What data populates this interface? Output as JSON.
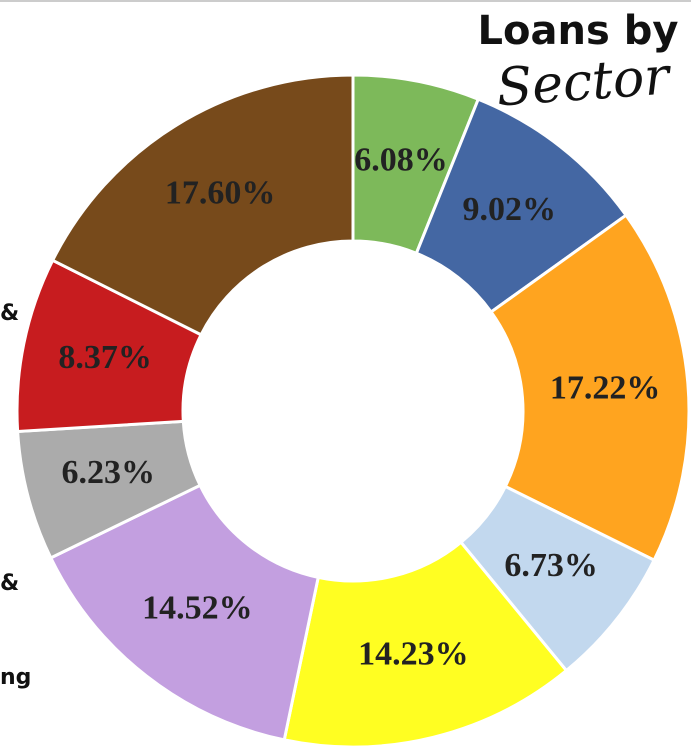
{
  "chart_data": {
    "type": "donut",
    "title": "Loans by",
    "subtitle": "Sector",
    "legend_fragments": [
      "&",
      "&",
      "ng"
    ],
    "values": [
      6.08,
      9.02,
      17.22,
      6.73,
      14.23,
      14.52,
      6.23,
      8.37,
      17.6
    ],
    "value_labels": [
      "6.08%",
      "9.02%",
      "17.22%",
      "6.73%",
      "14.23%",
      "14.52%",
      "6.23%",
      "8.37%",
      "17.60%"
    ],
    "colors": [
      "#7db95a",
      "#4467a3",
      "#ffa41f",
      "#c2d8ee",
      "#fffe22",
      "#c39fe0",
      "#ababab",
      "#c71c1f",
      "#774a1b"
    ]
  }
}
